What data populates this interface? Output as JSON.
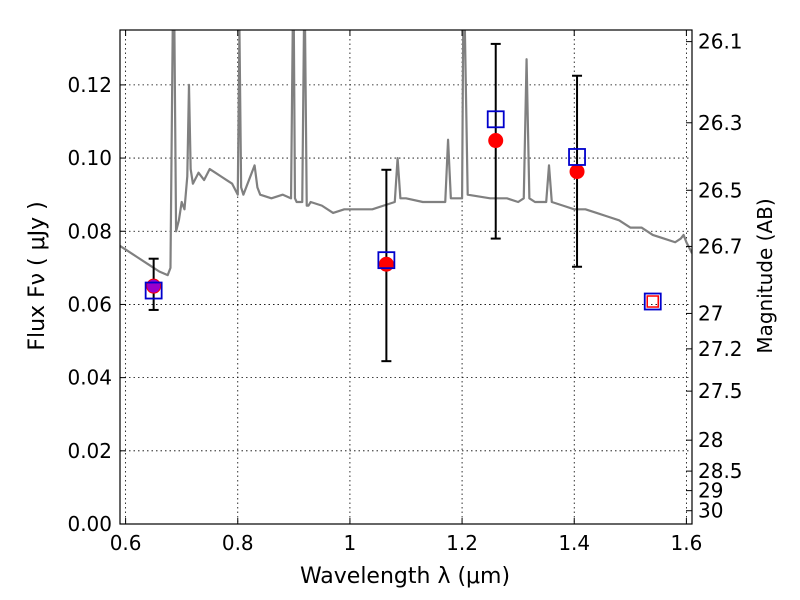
{
  "chart_data": {
    "type": "scatter",
    "title": "",
    "xlabel": "Wavelength  λ (μm)",
    "ylabel": "Flux  Fν  ( μJy )",
    "y2label": "Magnitude (AB)",
    "xlim": [
      0.59,
      1.61
    ],
    "ylim": [
      0.0,
      0.135
    ],
    "x_ticks": [
      0.6,
      0.8,
      1.0,
      1.2,
      1.4,
      1.6
    ],
    "x_tick_labels": [
      "0.6",
      "0.8",
      "1",
      "1.2",
      "1.4",
      "1.6"
    ],
    "y_ticks": [
      0.0,
      0.02,
      0.04,
      0.06,
      0.08,
      0.1,
      0.12
    ],
    "y_tick_labels": [
      "0.00",
      "0.02",
      "0.04",
      "0.06",
      "0.08",
      "0.10",
      "0.12"
    ],
    "y2_ticks": [
      26.1,
      26.3,
      26.5,
      26.7,
      27,
      27.2,
      27.5,
      28,
      28.5,
      29,
      30
    ],
    "y2_tick_labels": [
      "26.1",
      "26.3",
      "26.5",
      "26.7",
      "27",
      "27.2",
      "27.5",
      "28",
      "28.5",
      "29",
      "30"
    ],
    "grid": true,
    "colors": {
      "spectrum": "#808080",
      "observed": "#ff0000",
      "model": "#0000cc",
      "errorbar": "#000000",
      "highlight": "#9900cc"
    },
    "spectrum": {
      "x": [
        0.59,
        0.6,
        0.62,
        0.64,
        0.66,
        0.675,
        0.68,
        0.684,
        0.687,
        0.69,
        0.695,
        0.7,
        0.705,
        0.71,
        0.713,
        0.716,
        0.72,
        0.73,
        0.74,
        0.75,
        0.76,
        0.77,
        0.78,
        0.79,
        0.8,
        0.803,
        0.806,
        0.81,
        0.83,
        0.835,
        0.84,
        0.86,
        0.88,
        0.895,
        0.898,
        0.9,
        0.902,
        0.905,
        0.91,
        0.915,
        0.918,
        0.92,
        0.923,
        0.926,
        0.93,
        0.95,
        0.97,
        0.99,
        1.0,
        1.02,
        1.04,
        1.06,
        1.08,
        1.085,
        1.09,
        1.1,
        1.13,
        1.16,
        1.17,
        1.175,
        1.18,
        1.19,
        1.2,
        1.202,
        1.205,
        1.21,
        1.25,
        1.28,
        1.3,
        1.31,
        1.315,
        1.32,
        1.33,
        1.35,
        1.355,
        1.36,
        1.38,
        1.4,
        1.42,
        1.44,
        1.46,
        1.48,
        1.5,
        1.52,
        1.54,
        1.56,
        1.58,
        1.59,
        1.595,
        1.6,
        1.61
      ],
      "y": [
        0.076,
        0.075,
        0.073,
        0.071,
        0.069,
        0.068,
        0.07,
        0.135,
        0.135,
        0.08,
        0.083,
        0.088,
        0.086,
        0.095,
        0.12,
        0.097,
        0.093,
        0.096,
        0.094,
        0.097,
        0.096,
        0.095,
        0.094,
        0.093,
        0.09,
        0.135,
        0.092,
        0.09,
        0.098,
        0.092,
        0.09,
        0.089,
        0.09,
        0.089,
        0.135,
        0.135,
        0.089,
        0.088,
        0.088,
        0.088,
        0.135,
        0.135,
        0.087,
        0.087,
        0.088,
        0.087,
        0.085,
        0.086,
        0.086,
        0.086,
        0.086,
        0.087,
        0.088,
        0.1,
        0.089,
        0.089,
        0.088,
        0.088,
        0.088,
        0.105,
        0.089,
        0.089,
        0.089,
        0.135,
        0.135,
        0.09,
        0.089,
        0.089,
        0.088,
        0.089,
        0.127,
        0.089,
        0.088,
        0.088,
        0.098,
        0.088,
        0.087,
        0.086,
        0.086,
        0.085,
        0.084,
        0.083,
        0.081,
        0.081,
        0.079,
        0.078,
        0.077,
        0.078,
        0.079,
        0.077,
        0.074
      ]
    },
    "observed": [
      {
        "x": 0.65,
        "y": 0.065,
        "yerr_low": 0.0585,
        "yerr_high": 0.0725
      },
      {
        "x": 1.065,
        "y": 0.071,
        "yerr_low": 0.0445,
        "yerr_high": 0.0968
      },
      {
        "x": 1.26,
        "y": 0.1048,
        "yerr_low": 0.078,
        "yerr_high": 0.1312
      },
      {
        "x": 1.405,
        "y": 0.0963,
        "yerr_low": 0.0703,
        "yerr_high": 0.1225
      }
    ],
    "model": [
      {
        "x": 0.65,
        "y": 0.0638
      },
      {
        "x": 1.065,
        "y": 0.0721
      },
      {
        "x": 1.26,
        "y": 0.1106
      },
      {
        "x": 1.405,
        "y": 0.1003
      },
      {
        "x": 1.54,
        "y": 0.0608
      }
    ],
    "upper_limit_marker": {
      "x": 1.54,
      "y": 0.0608
    }
  }
}
